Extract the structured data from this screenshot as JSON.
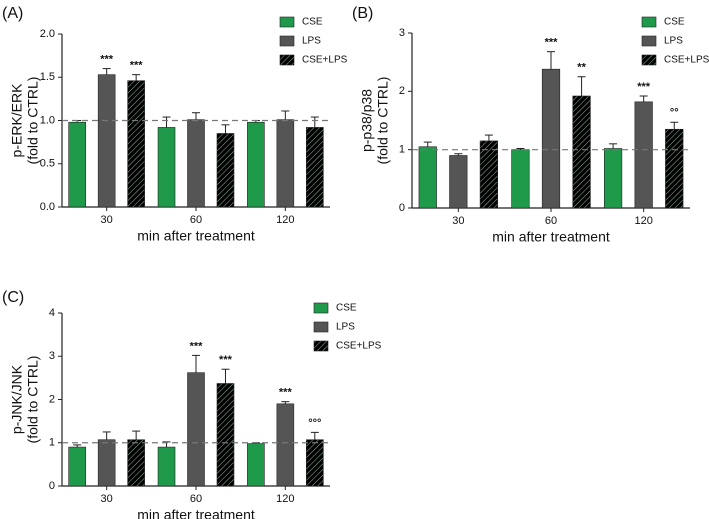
{
  "chart_data": [
    {
      "type": "bar",
      "panel": "(A)",
      "ylabel": [
        "p-ERK/ERK",
        "(fold to CTRL)"
      ],
      "xlabel": "min after treatment",
      "categories": [
        "30",
        "60",
        "120"
      ],
      "ylim": [
        0,
        2
      ],
      "yticks": [
        {
          "value": 0,
          "label": "0.0"
        },
        0.5,
        {
          "value": 1,
          "label": "1.0"
        },
        1.5,
        {
          "value": 2,
          "label": "2.0"
        }
      ],
      "refline": 1,
      "series": [
        {
          "name": "CSE",
          "color": "#1f9a4b",
          "hatch": false,
          "values": [
            0.98,
            0.92,
            0.98
          ],
          "errors": [
            0.02,
            0.12,
            0.02
          ],
          "annotations": [
            null,
            null,
            null
          ]
        },
        {
          "name": "LPS",
          "color": "#555555",
          "hatch": false,
          "values": [
            1.53,
            1.01,
            1.01
          ],
          "errors": [
            0.07,
            0.08,
            0.1
          ],
          "annotations": [
            "***",
            null,
            null
          ]
        },
        {
          "name": "CSE+LPS",
          "color": "#2f6e47",
          "hatch": true,
          "values": [
            1.46,
            0.85,
            0.92
          ],
          "errors": [
            0.07,
            0.1,
            0.12
          ],
          "annotations": [
            "***",
            null,
            null
          ]
        }
      ]
    },
    {
      "type": "bar",
      "panel": "(B)",
      "ylabel": [
        "p-p38/p38",
        "(fold to CTRL)"
      ],
      "xlabel": "min after treatment",
      "categories": [
        "30",
        "60",
        "120"
      ],
      "ylim": [
        0,
        3
      ],
      "yticks": [
        0,
        1,
        2,
        3
      ],
      "refline": 1,
      "series": [
        {
          "name": "CSE",
          "color": "#1f9a4b",
          "hatch": false,
          "values": [
            1.05,
            1.0,
            1.02
          ],
          "errors": [
            0.08,
            0.02,
            0.08
          ],
          "annotations": [
            null,
            null,
            null
          ]
        },
        {
          "name": "LPS",
          "color": "#555555",
          "hatch": false,
          "values": [
            0.9,
            2.38,
            1.82
          ],
          "errors": [
            0.03,
            0.3,
            0.1
          ],
          "annotations": [
            null,
            "***",
            "***"
          ]
        },
        {
          "name": "CSE+LPS",
          "color": "#2f6e47",
          "hatch": true,
          "values": [
            1.15,
            1.92,
            1.35
          ],
          "errors": [
            0.1,
            0.33,
            0.12
          ],
          "annotations": [
            null,
            "**",
            "°°"
          ]
        }
      ]
    },
    {
      "type": "bar",
      "panel": "(C)",
      "ylabel": [
        "p-JNK/JNK",
        "(fold to CTRL)"
      ],
      "xlabel": "min after treatment",
      "categories": [
        "30",
        "60",
        "120"
      ],
      "ylim": [
        0,
        4
      ],
      "yticks": [
        0,
        1,
        2,
        3,
        4
      ],
      "refline": 1,
      "series": [
        {
          "name": "CSE",
          "color": "#1f9a4b",
          "hatch": false,
          "values": [
            0.9,
            0.9,
            0.98
          ],
          "errors": [
            0.05,
            0.12,
            0.02
          ],
          "annotations": [
            null,
            null,
            null
          ]
        },
        {
          "name": "LPS",
          "color": "#555555",
          "hatch": false,
          "values": [
            1.07,
            2.62,
            1.9
          ],
          "errors": [
            0.18,
            0.4,
            0.05
          ],
          "annotations": [
            null,
            "***",
            "***"
          ]
        },
        {
          "name": "CSE+LPS",
          "color": "#2f6e47",
          "hatch": true,
          "values": [
            1.07,
            2.37,
            1.07
          ],
          "errors": [
            0.2,
            0.33,
            0.17
          ],
          "annotations": [
            null,
            "***",
            "°°°"
          ]
        }
      ]
    }
  ]
}
